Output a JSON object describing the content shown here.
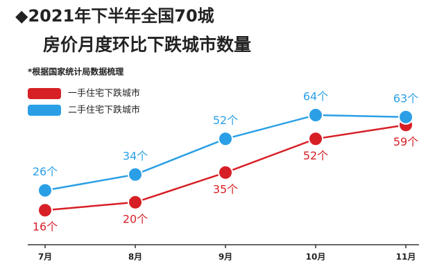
{
  "chart_data": {
    "type": "line",
    "title": "◆2021年下半年全国70城",
    "subtitle": "房价月度环比下跌城市数量",
    "note": "*根据国家统计局数据梳理",
    "categories": [
      "7月",
      "8月",
      "9月",
      "10月",
      "11月"
    ],
    "series": [
      {
        "name": "一手住宅下跌城市",
        "color": "#d71f26",
        "values": [
          16,
          20,
          35,
          52,
          59
        ],
        "value_labels": [
          "16个",
          "20个",
          "35个",
          "52个",
          "59个"
        ]
      },
      {
        "name": "二手住宅下跌城市",
        "color": "#2b9fe6",
        "values": [
          26,
          34,
          52,
          64,
          63
        ],
        "value_labels": [
          "26个",
          "34个",
          "52个",
          "64个",
          "63个"
        ]
      }
    ]
  }
}
